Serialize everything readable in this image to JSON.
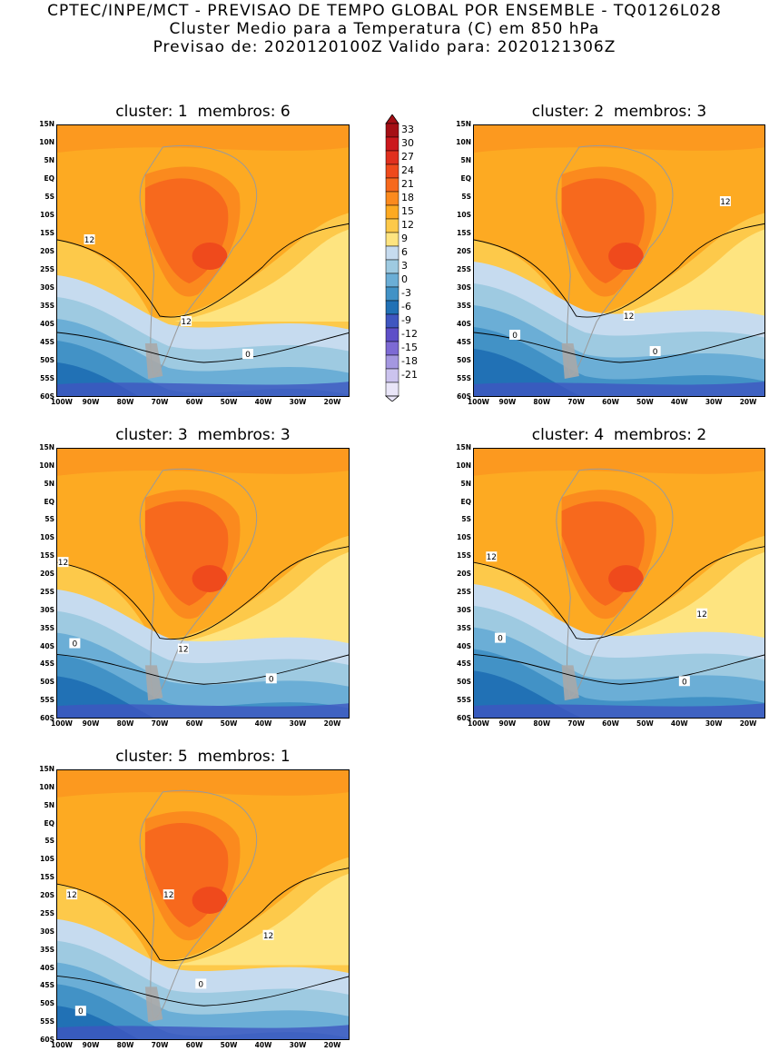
{
  "header": {
    "line1": "CPTEC/INPE/MCT - PREVISAO DE TEMPO GLOBAL POR ENSEMBLE - TQ0126L028",
    "line2": "Cluster Medio para a Temperatura (C) em 850 hPa",
    "line3": "Previsao de: 2020120100Z   Valido para: 2020121306Z"
  },
  "panels": [
    {
      "title": "cluster: 1  membros: 6",
      "contour_labels": [
        "12",
        "12",
        "0"
      ]
    },
    {
      "title": "cluster: 2  membros: 3",
      "contour_labels": [
        "12",
        "12",
        "0",
        "0"
      ]
    },
    {
      "title": "cluster: 3  membros: 3",
      "contour_labels": [
        "12",
        "12",
        "0",
        "0"
      ]
    },
    {
      "title": "cluster: 4  membros: 2",
      "contour_labels": [
        "12",
        "12",
        "0",
        "0"
      ]
    },
    {
      "title": "cluster: 5  membros: 1",
      "contour_labels": [
        "12",
        "12",
        "12",
        "0",
        "0"
      ]
    }
  ],
  "lat_ticks": [
    "15N",
    "10N",
    "5N",
    "EQ",
    "5S",
    "10S",
    "15S",
    "20S",
    "25S",
    "30S",
    "35S",
    "40S",
    "45S",
    "50S",
    "55S",
    "60S"
  ],
  "lon_ticks": [
    "100W",
    "90W",
    "80W",
    "70W",
    "60W",
    "50W",
    "40W",
    "30W",
    "20W"
  ],
  "colorbar": {
    "labels": [
      "33",
      "30",
      "27",
      "24",
      "21",
      "18",
      "15",
      "12",
      "9",
      "6",
      "3",
      "0",
      "-3",
      "-6",
      "-9",
      "-12",
      "-15",
      "-18",
      "-21"
    ],
    "colors": [
      "#a50f15",
      "#cb181d",
      "#e0301e",
      "#ef4a1c",
      "#f7691d",
      "#fb8a1e",
      "#fdaa22",
      "#fdc94a",
      "#fee480",
      "#c6dbef",
      "#9ecae1",
      "#6baed6",
      "#4292c6",
      "#2171b5",
      "#3f56c0",
      "#5e4fc8",
      "#7d6ad4",
      "#a497e0",
      "#cbc3ee",
      "#e9e5f8"
    ]
  }
}
